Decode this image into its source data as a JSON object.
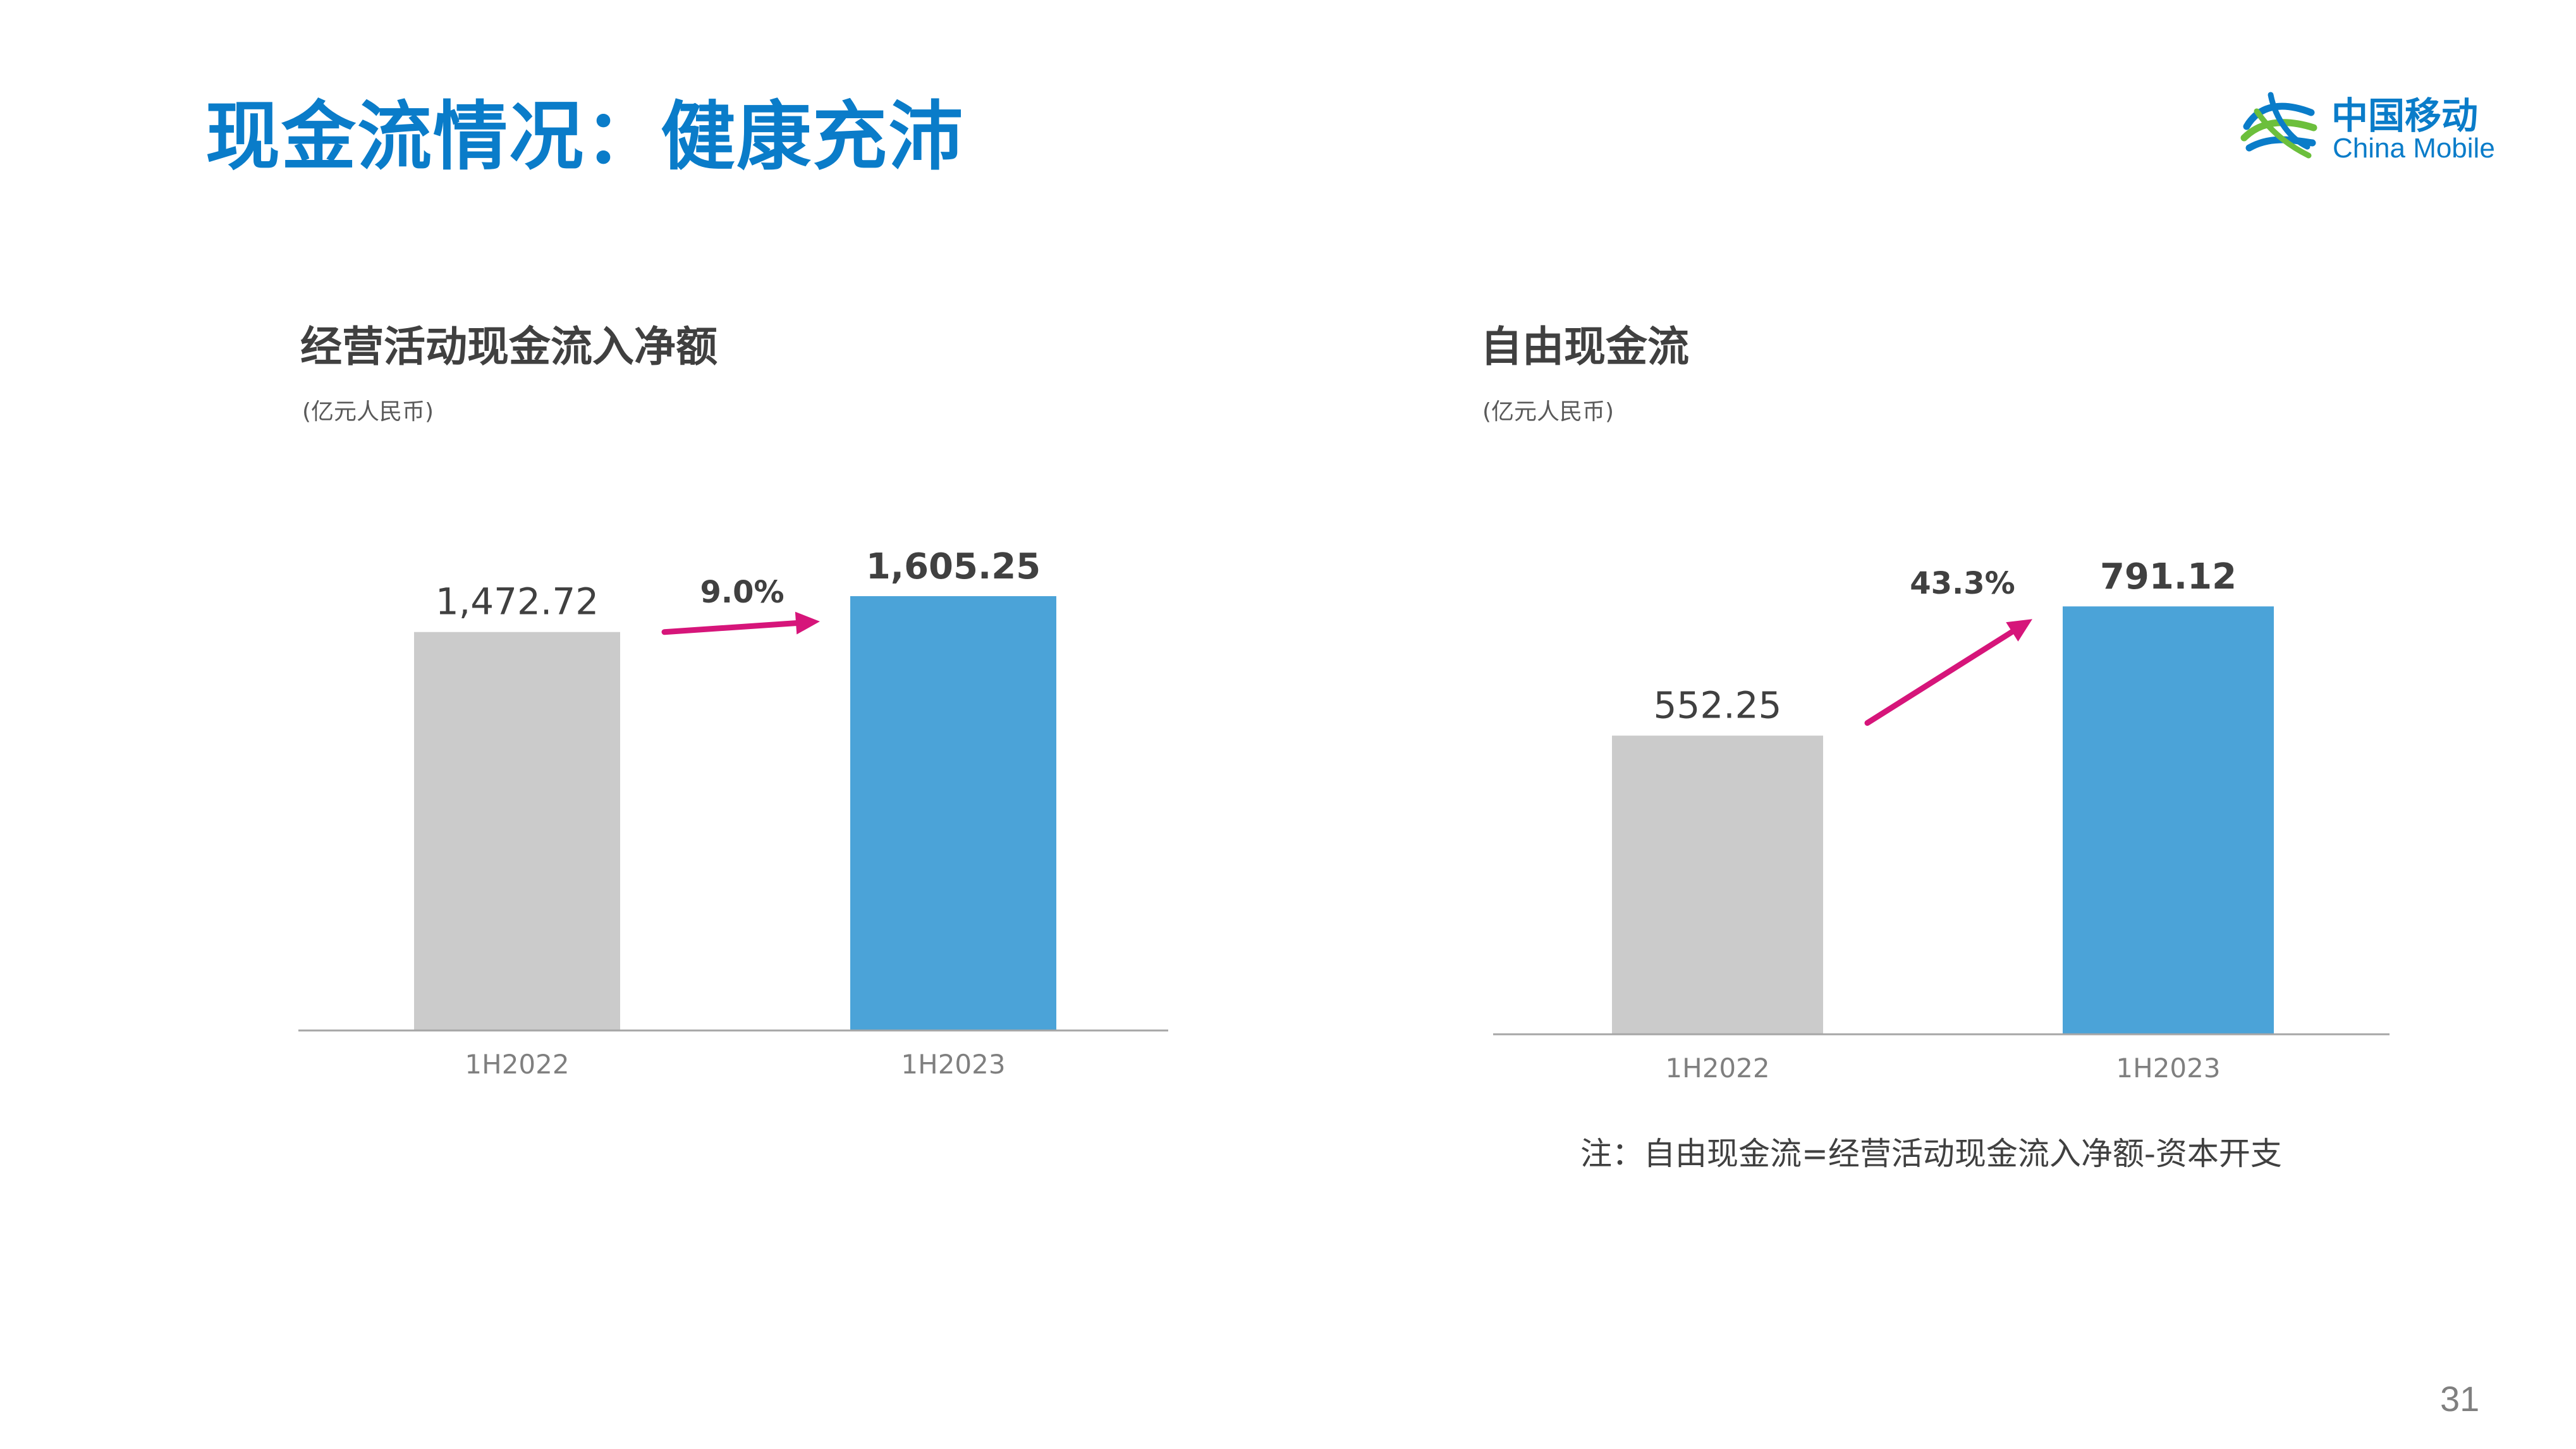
{
  "slide": {
    "title": "现金流情况：健康充沛",
    "page_number": "31",
    "note": "注：自由现金流=经营活动现金流入净额-资本开支"
  },
  "logo": {
    "cn": "中国移动",
    "en": "China Mobile",
    "color": "#0a7cc9"
  },
  "colors": {
    "bar_prior": "#cbcbcb",
    "bar_current": "#4ba3d8",
    "growth_arrow": "#d6157a",
    "axis": "#a6a6a6"
  },
  "chart_data": [
    {
      "type": "bar",
      "title": "经营活动现金流入净额",
      "unit": "(亿元人民币)",
      "categories": [
        "1H2022",
        "1H2023"
      ],
      "values": [
        1472.72,
        1605.25
      ],
      "value_labels": [
        "1,472.72",
        "1,605.25"
      ],
      "growth_label": "9.0%",
      "ylim": [
        0,
        1605.25
      ],
      "grid": false,
      "legend": "none"
    },
    {
      "type": "bar",
      "title": "自由现金流",
      "unit": "(亿元人民币)",
      "categories": [
        "1H2022",
        "1H2023"
      ],
      "values": [
        552.25,
        791.12
      ],
      "value_labels": [
        "552.25",
        "791.12"
      ],
      "growth_label": "43.3%",
      "ylim": [
        0,
        1280
      ],
      "grid": false,
      "legend": "none"
    }
  ]
}
